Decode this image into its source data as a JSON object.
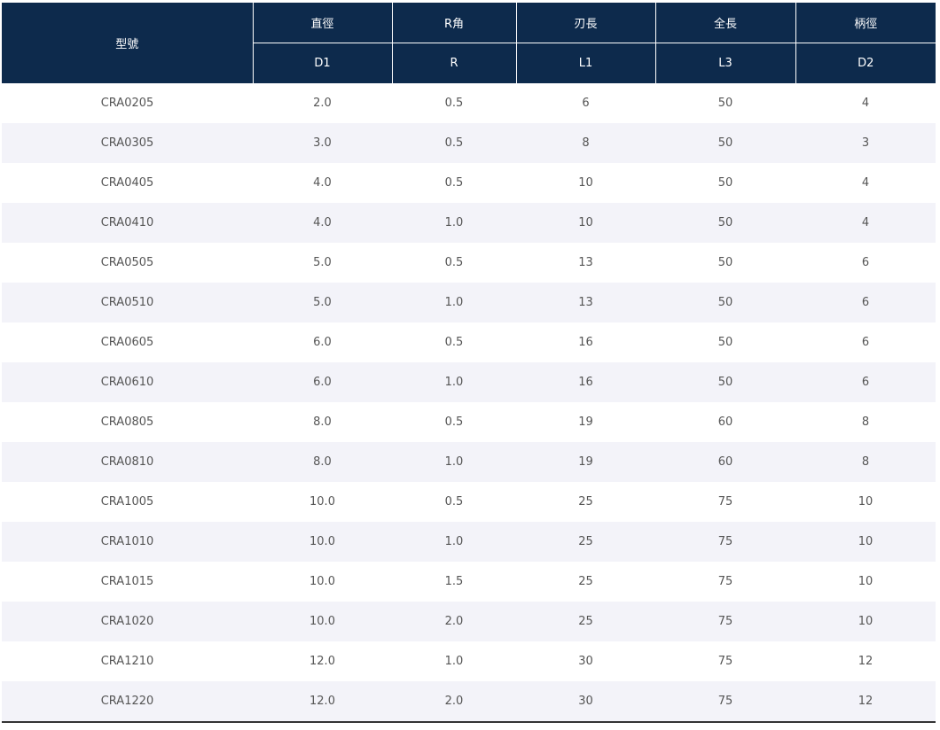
{
  "table": {
    "model_header": "型號",
    "columns": [
      {
        "label": "直徑",
        "code": "D1"
      },
      {
        "label": "R角",
        "code": "R"
      },
      {
        "label": "刃長",
        "code": "L1"
      },
      {
        "label": "全長",
        "code": "L3"
      },
      {
        "label": "柄徑",
        "code": "D2"
      }
    ],
    "rows": [
      [
        "CRA0205",
        "2.0",
        "0.5",
        "6",
        "50",
        "4"
      ],
      [
        "CRA0305",
        "3.0",
        "0.5",
        "8",
        "50",
        "3"
      ],
      [
        "CRA0405",
        "4.0",
        "0.5",
        "10",
        "50",
        "4"
      ],
      [
        "CRA0410",
        "4.0",
        "1.0",
        "10",
        "50",
        "4"
      ],
      [
        "CRA0505",
        "5.0",
        "0.5",
        "13",
        "50",
        "6"
      ],
      [
        "CRA0510",
        "5.0",
        "1.0",
        "13",
        "50",
        "6"
      ],
      [
        "CRA0605",
        "6.0",
        "0.5",
        "16",
        "50",
        "6"
      ],
      [
        "CRA0610",
        "6.0",
        "1.0",
        "16",
        "50",
        "6"
      ],
      [
        "CRA0805",
        "8.0",
        "0.5",
        "19",
        "60",
        "8"
      ],
      [
        "CRA0810",
        "8.0",
        "1.0",
        "19",
        "60",
        "8"
      ],
      [
        "CRA1005",
        "10.0",
        "0.5",
        "25",
        "75",
        "10"
      ],
      [
        "CRA1010",
        "10.0",
        "1.0",
        "25",
        "75",
        "10"
      ],
      [
        "CRA1015",
        "10.0",
        "1.5",
        "25",
        "75",
        "10"
      ],
      [
        "CRA1020",
        "10.0",
        "2.0",
        "25",
        "75",
        "10"
      ],
      [
        "CRA1210",
        "12.0",
        "1.0",
        "30",
        "75",
        "12"
      ],
      [
        "CRA1220",
        "12.0",
        "2.0",
        "30",
        "75",
        "12"
      ]
    ]
  }
}
